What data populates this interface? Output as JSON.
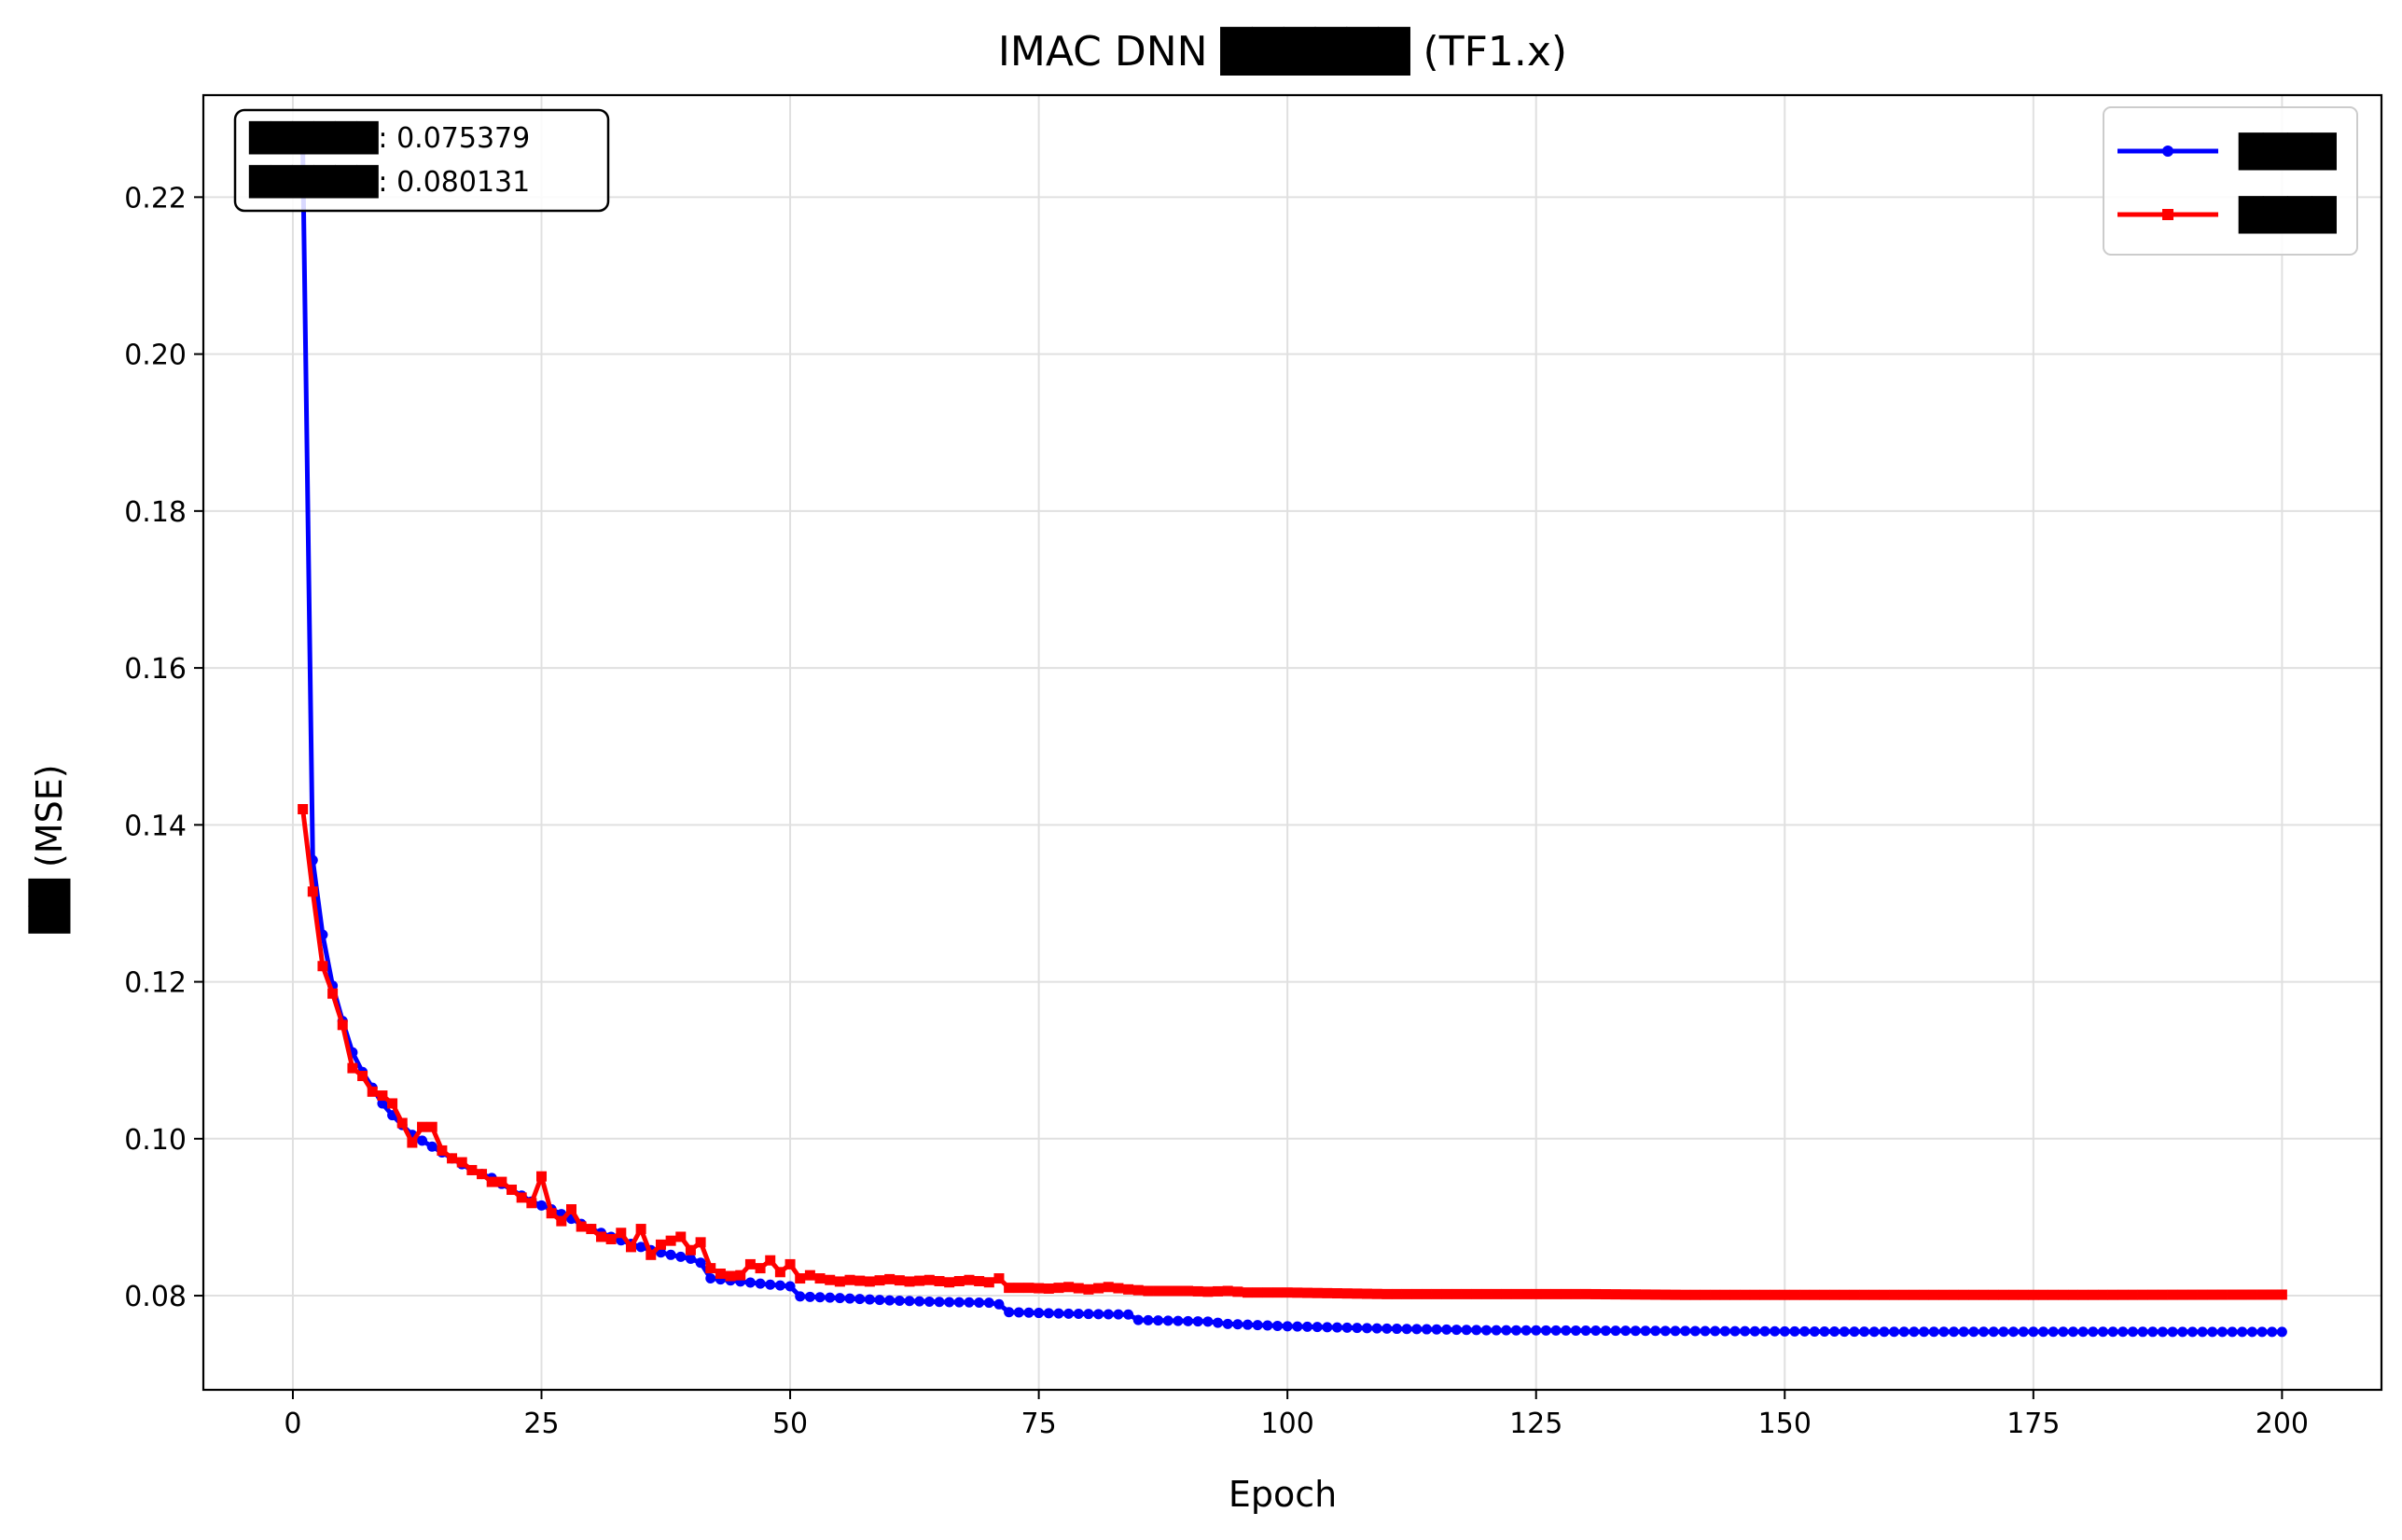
{
  "chart_data": {
    "type": "line",
    "title": "IMAC DNN ██████ (TF1.x)",
    "xlabel": "Epoch",
    "ylabel": "██ (MSE)",
    "xlim": [
      -9,
      210
    ],
    "ylim": [
      0.068,
      0.233
    ],
    "xticks": [
      0,
      25,
      50,
      75,
      100,
      125,
      150,
      175,
      200
    ],
    "yticks": [
      0.08,
      0.1,
      0.12,
      0.14,
      0.16,
      0.18,
      0.2,
      0.22
    ],
    "ytick_labels": [
      "0.08",
      "0.10",
      "0.12",
      "0.14",
      "0.16",
      "0.18",
      "0.20",
      "0.22"
    ],
    "grid": true,
    "legend_position": "top-right",
    "annotation": [
      "██████: 0.075379",
      "██████: 0.080131"
    ],
    "series": [
      {
        "name": "████",
        "color": "#0000ff",
        "marker": "circle",
        "points": [
          [
            1,
            0.226
          ],
          [
            2,
            0.1355
          ],
          [
            3,
            0.126
          ],
          [
            4,
            0.1195
          ],
          [
            5,
            0.115
          ],
          [
            6,
            0.111
          ],
          [
            7,
            0.1085
          ],
          [
            8,
            0.1065
          ],
          [
            9,
            0.1045
          ],
          [
            10,
            0.103
          ],
          [
            12,
            0.1005
          ],
          [
            14,
            0.099
          ],
          [
            16,
            0.0975
          ],
          [
            18,
            0.096
          ],
          [
            20,
            0.095
          ],
          [
            22,
            0.0935
          ],
          [
            24,
            0.092
          ],
          [
            26,
            0.091
          ],
          [
            28,
            0.0898
          ],
          [
            30,
            0.0885
          ],
          [
            32,
            0.0875
          ],
          [
            34,
            0.0866
          ],
          [
            36,
            0.0858
          ],
          [
            38,
            0.0852
          ],
          [
            40,
            0.0847
          ],
          [
            41,
            0.0842
          ],
          [
            42,
            0.0822
          ],
          [
            45,
            0.0818
          ],
          [
            48,
            0.0814
          ],
          [
            50,
            0.0812
          ],
          [
            51,
            0.0799
          ],
          [
            55,
            0.0797
          ],
          [
            60,
            0.0794
          ],
          [
            65,
            0.0792
          ],
          [
            70,
            0.0791
          ],
          [
            71,
            0.0789
          ],
          [
            72,
            0.0779
          ],
          [
            78,
            0.0777
          ],
          [
            84,
            0.0776
          ],
          [
            85,
            0.0769
          ],
          [
            92,
            0.0767
          ],
          [
            94,
            0.0764
          ],
          [
            100,
            0.0761
          ],
          [
            110,
            0.0758
          ],
          [
            120,
            0.0756
          ],
          [
            140,
            0.0755
          ],
          [
            160,
            0.0754
          ],
          [
            180,
            0.0754
          ],
          [
            200,
            0.07538
          ]
        ]
      },
      {
        "name": "████",
        "color": "#ff0000",
        "marker": "square",
        "points": [
          [
            1,
            0.142
          ],
          [
            2,
            0.1315
          ],
          [
            3,
            0.122
          ],
          [
            4,
            0.1185
          ],
          [
            5,
            0.1145
          ],
          [
            6,
            0.109
          ],
          [
            7,
            0.108
          ],
          [
            8,
            0.106
          ],
          [
            9,
            0.1055
          ],
          [
            10,
            0.1045
          ],
          [
            11,
            0.102
          ],
          [
            12,
            0.0995
          ],
          [
            13,
            0.1015
          ],
          [
            14,
            0.1015
          ],
          [
            15,
            0.0985
          ],
          [
            16,
            0.0975
          ],
          [
            17,
            0.097
          ],
          [
            18,
            0.096
          ],
          [
            19,
            0.0955
          ],
          [
            20,
            0.0945
          ],
          [
            21,
            0.0945
          ],
          [
            22,
            0.0935
          ],
          [
            23,
            0.0925
          ],
          [
            24,
            0.0918
          ],
          [
            25,
            0.0952
          ],
          [
            26,
            0.0905
          ],
          [
            27,
            0.0895
          ],
          [
            28,
            0.091
          ],
          [
            29,
            0.0888
          ],
          [
            30,
            0.0885
          ],
          [
            31,
            0.0875
          ],
          [
            32,
            0.0872
          ],
          [
            33,
            0.088
          ],
          [
            34,
            0.0862
          ],
          [
            35,
            0.0885
          ],
          [
            36,
            0.0852
          ],
          [
            37,
            0.0865
          ],
          [
            38,
            0.087
          ],
          [
            39,
            0.0875
          ],
          [
            40,
            0.0858
          ],
          [
            41,
            0.0868
          ],
          [
            42,
            0.0835
          ],
          [
            43,
            0.0828
          ],
          [
            44,
            0.0825
          ],
          [
            45,
            0.0826
          ],
          [
            46,
            0.084
          ],
          [
            47,
            0.0835
          ],
          [
            48,
            0.0845
          ],
          [
            49,
            0.083
          ],
          [
            50,
            0.084
          ],
          [
            51,
            0.0822
          ],
          [
            52,
            0.0826
          ],
          [
            53,
            0.0822
          ],
          [
            55,
            0.0818
          ],
          [
            56,
            0.082
          ],
          [
            58,
            0.0818
          ],
          [
            60,
            0.0821
          ],
          [
            62,
            0.0818
          ],
          [
            64,
            0.082
          ],
          [
            66,
            0.0817
          ],
          [
            68,
            0.082
          ],
          [
            70,
            0.0817
          ],
          [
            71,
            0.0822
          ],
          [
            72,
            0.081
          ],
          [
            74,
            0.081
          ],
          [
            76,
            0.0809
          ],
          [
            78,
            0.0811
          ],
          [
            80,
            0.0808
          ],
          [
            82,
            0.0811
          ],
          [
            84,
            0.0808
          ],
          [
            86,
            0.0806
          ],
          [
            88,
            0.0806
          ],
          [
            90,
            0.0806
          ],
          [
            92,
            0.0805
          ],
          [
            94,
            0.0806
          ],
          [
            96,
            0.0804
          ],
          [
            100,
            0.0804
          ],
          [
            105,
            0.0803
          ],
          [
            110,
            0.0802
          ],
          [
            120,
            0.0802
          ],
          [
            130,
            0.0802
          ],
          [
            140,
            0.0801
          ],
          [
            160,
            0.0801
          ],
          [
            180,
            0.0801
          ],
          [
            200,
            0.08013
          ]
        ]
      }
    ]
  }
}
